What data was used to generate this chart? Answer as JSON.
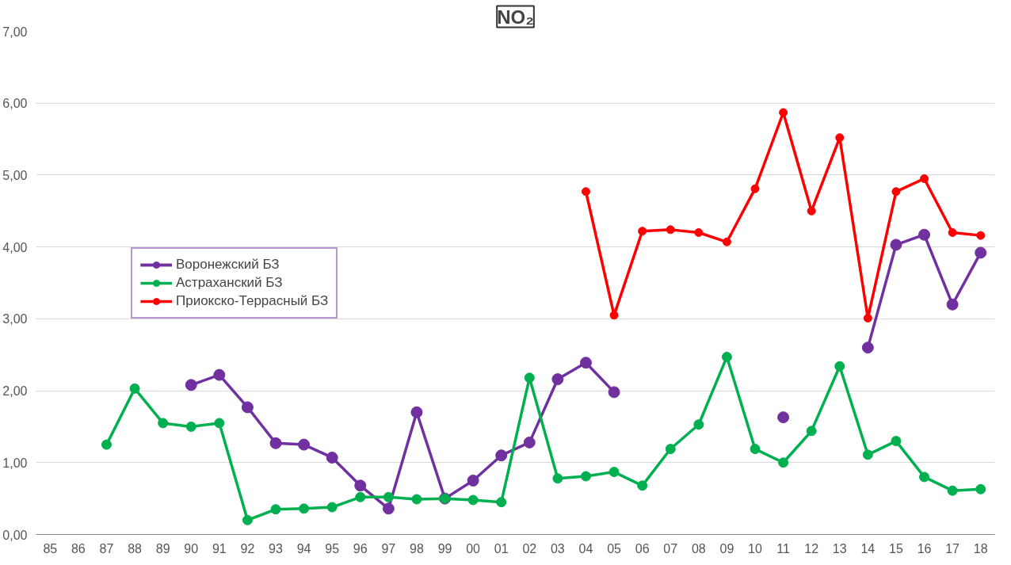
{
  "chart_data": {
    "type": "line",
    "title": "NO₂",
    "categories": [
      "85",
      "86",
      "87",
      "88",
      "89",
      "90",
      "91",
      "92",
      "93",
      "94",
      "95",
      "96",
      "97",
      "98",
      "99",
      "00",
      "01",
      "02",
      "03",
      "04",
      "05",
      "06",
      "07",
      "08",
      "09",
      "10",
      "11",
      "12",
      "13",
      "14",
      "15",
      "16",
      "17",
      "18"
    ],
    "series": [
      {
        "name": "Воронежский БЗ",
        "color": "#7030a0",
        "values": [
          null,
          null,
          null,
          null,
          null,
          2.08,
          2.22,
          1.77,
          1.27,
          1.25,
          1.07,
          0.68,
          0.36,
          1.7,
          0.5,
          0.75,
          1.1,
          1.28,
          2.16,
          2.39,
          1.98,
          null,
          null,
          null,
          null,
          null,
          1.63,
          null,
          null,
          2.6,
          4.03,
          4.17,
          3.2,
          3.92
        ]
      },
      {
        "name": "Астраханский БЗ",
        "color": "#00b050",
        "values": [
          null,
          null,
          1.25,
          2.03,
          1.55,
          1.5,
          1.55,
          0.2,
          0.35,
          0.36,
          0.38,
          0.52,
          0.52,
          0.49,
          0.5,
          0.48,
          0.45,
          2.18,
          0.78,
          0.81,
          0.87,
          0.68,
          1.19,
          1.53,
          2.47,
          1.19,
          1.0,
          1.44,
          2.34,
          1.11,
          1.3,
          0.8,
          0.61,
          0.63
        ]
      },
      {
        "name": "Приокско-Террасный БЗ",
        "color": "#ff0000",
        "values": [
          null,
          null,
          null,
          null,
          null,
          null,
          null,
          null,
          null,
          null,
          null,
          null,
          null,
          null,
          null,
          null,
          null,
          null,
          null,
          4.77,
          3.05,
          4.22,
          4.24,
          4.2,
          4.07,
          4.81,
          5.87,
          4.5,
          5.52,
          3.01,
          4.77,
          4.95,
          4.2,
          4.16
        ]
      }
    ],
    "ylim": [
      0,
      7
    ],
    "yticks": [
      {
        "value": 0,
        "label": "0,00"
      },
      {
        "value": 1,
        "label": "1,00"
      },
      {
        "value": 2,
        "label": "2,00"
      },
      {
        "value": 3,
        "label": "3,00"
      },
      {
        "value": 4,
        "label": "4,00"
      },
      {
        "value": 5,
        "label": "5,00"
      },
      {
        "value": 6,
        "label": "6,00"
      },
      {
        "value": 7,
        "label": "7,00"
      }
    ],
    "grid": "y",
    "legend": "left",
    "marker": "circle",
    "line_style": "solid"
  }
}
